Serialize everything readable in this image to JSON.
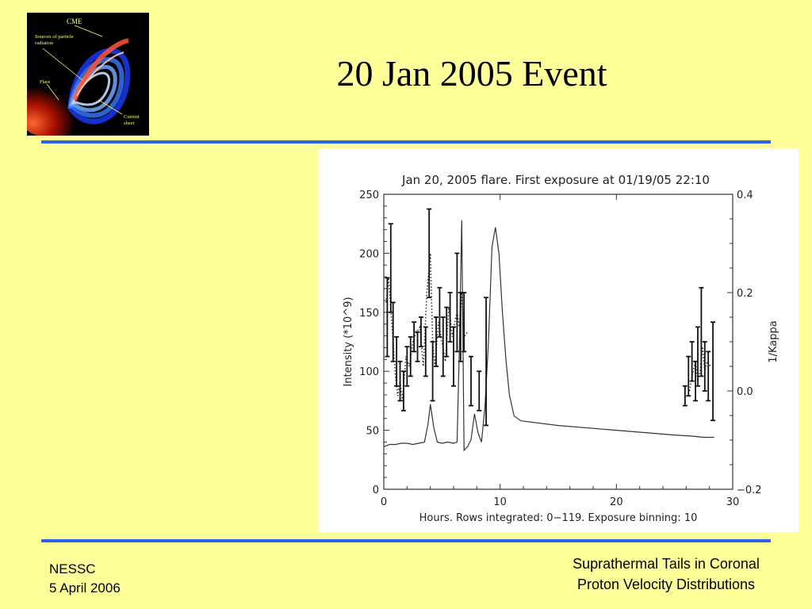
{
  "slide": {
    "title": "20 Jan 2005 Event",
    "footer_left": [
      "NESSC",
      "5 April 2006"
    ],
    "footer_right": [
      "Suprathermal Tails in Coronal",
      "Proton Velocity Distributions"
    ],
    "rule_color": "#2c64e6",
    "background_color": "#ffff99"
  },
  "cme_image": {
    "labels": {
      "cme": "CME",
      "sources": [
        "Sources of particle",
        "radiation"
      ],
      "flare": "Flare",
      "current_sheet": [
        "Current",
        "sheet"
      ]
    }
  },
  "chart_data": {
    "type": "line",
    "title": "Jan 20, 2005 flare. First exposure at 01/19/05 22:10",
    "xlabel": "Hours. Rows integrated: 0−119. Exposure binning: 10",
    "ylabel": "Intensity (*10^9)",
    "y2label": "1/Kappa",
    "xlim": [
      0,
      30
    ],
    "ylim": [
      0,
      250
    ],
    "y2lim": [
      -0.2,
      0.4
    ],
    "xticks": [
      "0",
      "10",
      "20",
      "30"
    ],
    "yticks": [
      "0",
      "50",
      "100",
      "150",
      "200",
      "250"
    ],
    "y2ticks": [
      "−0.2",
      "0.0",
      "0.2",
      "0.4"
    ],
    "series": [
      {
        "style": "solid",
        "axis": "left",
        "x": [
          0,
          0.5,
          1,
          1.5,
          2,
          2.5,
          3,
          3.5,
          3.8,
          4.0,
          4.3,
          4.6,
          5,
          5.5,
          6,
          6.3,
          6.5,
          6.7,
          6.9,
          7.2,
          7.5,
          7.8,
          8.1,
          8.4,
          8.7,
          9.0,
          9.3,
          9.6,
          9.9,
          10.2,
          10.5,
          10.8,
          11.2,
          11.8,
          15,
          20,
          25,
          26.5,
          27.5,
          28.4
        ],
        "y": [
          36,
          38,
          38,
          39,
          39,
          38,
          39,
          40,
          55,
          72,
          52,
          40,
          39,
          40,
          39,
          40,
          120,
          228,
          33,
          36,
          42,
          64,
          48,
          40,
          70,
          125,
          205,
          222,
          200,
          150,
          110,
          80,
          62,
          58,
          54,
          50,
          46,
          45,
          44,
          44
        ]
      },
      {
        "style": "dotted",
        "axis": "right",
        "x": [
          0.2,
          0.4,
          0.6,
          0.8,
          1.0,
          1.2,
          1.4,
          1.6,
          1.9,
          2.2,
          2.5,
          2.8,
          3.1,
          3.4,
          3.7,
          4.0,
          4.2,
          4.4,
          4.7,
          5.0,
          5.3,
          5.6,
          5.9,
          6.1,
          6.3,
          6.5,
          6.7,
          6.9,
          7.2
        ],
        "y": [
          0.18,
          0.23,
          0.17,
          0.1,
          0.03,
          -0.01,
          0.02,
          -0.02,
          0.07,
          0.05,
          0.1,
          0.12,
          0.13,
          0.05,
          0.2,
          0.28,
          0.1,
          0.05,
          0.14,
          0.1,
          0.06,
          0.17,
          0.11,
          0.14,
          0.16,
          0.13,
          0.2,
          0.11,
          0.12
        ]
      },
      {
        "style": "dotted",
        "axis": "right",
        "x": [
          26.3,
          26.5,
          26.8,
          27.0,
          27.2,
          27.4,
          27.6,
          27.8,
          28.1
        ],
        "y": [
          0.0,
          0.03,
          0.06,
          0.02,
          0.04,
          0.09,
          0.04,
          0.06,
          0.05
        ]
      }
    ],
    "error_bars": {
      "axis": "right",
      "x": [
        0.3,
        0.6,
        0.8,
        1.1,
        1.4,
        1.7,
        2.0,
        2.3,
        2.6,
        2.9,
        3.2,
        3.6,
        3.9,
        4.2,
        4.5,
        4.8,
        5.1,
        5.4,
        5.7,
        6.0,
        6.3,
        6.6,
        6.9,
        7.5,
        8.2,
        8.8,
        25.9,
        26.2,
        26.5,
        26.8,
        27.0,
        27.3,
        27.6,
        27.9,
        28.3
      ],
      "y": [
        0.15,
        0.25,
        0.12,
        0.06,
        0.02,
        0.0,
        0.05,
        0.07,
        0.11,
        0.09,
        0.12,
        0.08,
        0.28,
        0.04,
        0.1,
        0.16,
        0.09,
        0.12,
        0.15,
        0.07,
        0.18,
        0.13,
        0.14,
        0.02,
        0.0,
        0.06,
        -0.01,
        0.03,
        0.06,
        0.02,
        0.07,
        0.12,
        0.05,
        0.03,
        0.04
      ],
      "err": [
        0.08,
        0.09,
        0.06,
        0.05,
        0.04,
        0.04,
        0.04,
        0.04,
        0.03,
        0.03,
        0.03,
        0.05,
        0.09,
        0.06,
        0.05,
        0.05,
        0.06,
        0.05,
        0.05,
        0.06,
        0.1,
        0.07,
        0.06,
        0.05,
        0.04,
        0.13,
        0.02,
        0.04,
        0.04,
        0.04,
        0.06,
        0.09,
        0.05,
        0.05,
        0.1
      ]
    },
    "grid": false
  }
}
